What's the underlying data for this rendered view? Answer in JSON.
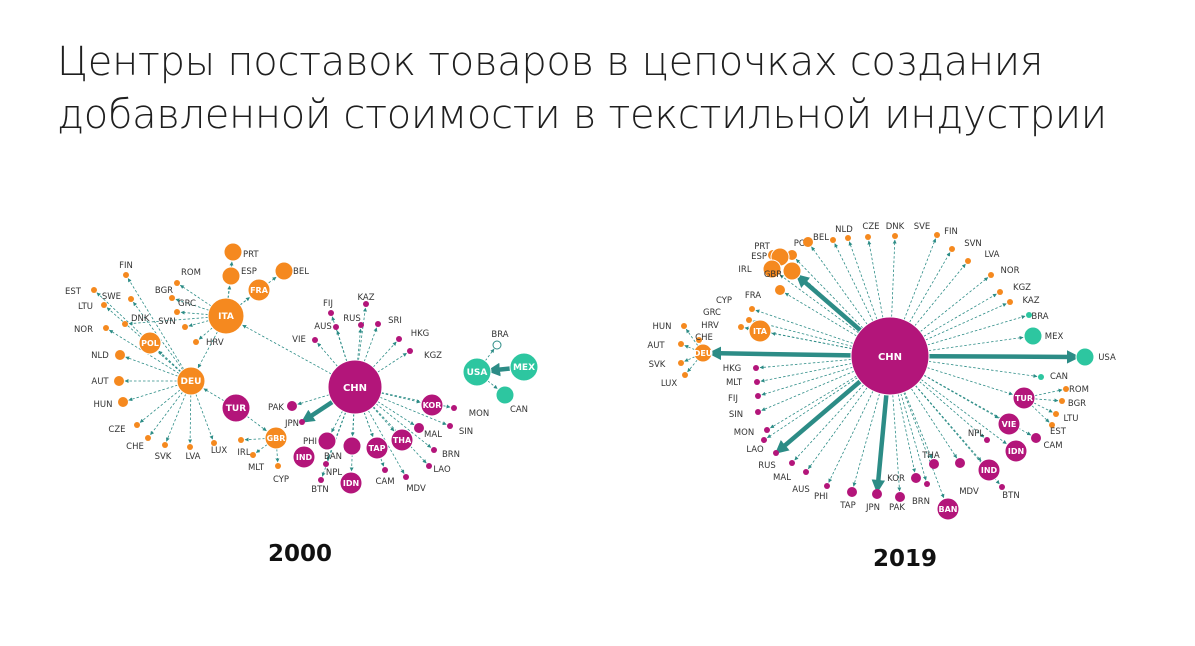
{
  "title": {
    "line1": "Центры поставок товаров в цепочках создания",
    "line2": "добавленной стоимости в текстильной индустрии"
  },
  "colors": {
    "orange": "#F5891F",
    "magenta": "#B3157A",
    "teal": "#2DC6A0",
    "edge": "#2C8C86",
    "label": "#333333"
  },
  "networks": [
    {
      "year": "2000",
      "nodes": [
        {
          "id": "CHN",
          "group": "magenta",
          "size": "xl",
          "inside": true
        },
        {
          "id": "DEU",
          "group": "orange",
          "size": "m",
          "inside": true
        },
        {
          "id": "ITA",
          "group": "orange",
          "size": "l",
          "inside": true
        },
        {
          "id": "FRA",
          "group": "orange",
          "size": "s",
          "inside": true
        },
        {
          "id": "POL",
          "group": "orange",
          "size": "s",
          "inside": true
        },
        {
          "id": "GBR",
          "group": "orange",
          "size": "s",
          "inside": true
        },
        {
          "id": "TUR",
          "group": "magenta",
          "size": "m",
          "inside": true
        },
        {
          "id": "KOR",
          "group": "magenta",
          "size": "s",
          "inside": true
        },
        {
          "id": "THA",
          "group": "magenta",
          "size": "s",
          "inside": true
        },
        {
          "id": "TAP",
          "group": "magenta",
          "size": "s",
          "inside": true
        },
        {
          "id": "IDN",
          "group": "magenta",
          "size": "s",
          "inside": true
        },
        {
          "id": "IND",
          "group": "magenta",
          "size": "s",
          "inside": true
        },
        {
          "id": "USA",
          "group": "teal",
          "size": "m",
          "inside": true
        },
        {
          "id": "MEX",
          "group": "teal",
          "size": "m",
          "inside": true
        },
        {
          "id": "PRT",
          "group": "orange",
          "size": "xs"
        },
        {
          "id": "ESP",
          "group": "orange",
          "size": "xs"
        },
        {
          "id": "BEL",
          "group": "orange",
          "size": "xs"
        },
        {
          "id": "FIN",
          "group": "orange",
          "size": "dot"
        },
        {
          "id": "EST",
          "group": "orange",
          "size": "dot"
        },
        {
          "id": "ROM",
          "group": "orange",
          "size": "dot"
        },
        {
          "id": "BGR",
          "group": "orange",
          "size": "dot"
        },
        {
          "id": "SWE",
          "group": "orange",
          "size": "dot"
        },
        {
          "id": "LTU",
          "group": "orange",
          "size": "dot"
        },
        {
          "id": "GRC",
          "group": "orange",
          "size": "dot"
        },
        {
          "id": "DNK",
          "group": "orange",
          "size": "dot"
        },
        {
          "id": "SVN",
          "group": "orange",
          "size": "dot"
        },
        {
          "id": "NOR",
          "group": "orange",
          "size": "dot"
        },
        {
          "id": "HRV",
          "group": "orange",
          "size": "dot"
        },
        {
          "id": "NLD",
          "group": "orange",
          "size": "xxs"
        },
        {
          "id": "AUT",
          "group": "orange",
          "size": "xxs"
        },
        {
          "id": "HUN",
          "group": "orange",
          "size": "xxs"
        },
        {
          "id": "CZE",
          "group": "orange",
          "size": "dot"
        },
        {
          "id": "CHE",
          "group": "orange",
          "size": "dot"
        },
        {
          "id": "SVK",
          "group": "orange",
          "size": "dot"
        },
        {
          "id": "LVA",
          "group": "orange",
          "size": "dot"
        },
        {
          "id": "LUX",
          "group": "orange",
          "size": "dot"
        },
        {
          "id": "IRL",
          "group": "orange",
          "size": "dot"
        },
        {
          "id": "MLT",
          "group": "orange",
          "size": "dot"
        },
        {
          "id": "CYP",
          "group": "orange",
          "size": "dot"
        },
        {
          "id": "PAK",
          "group": "magenta",
          "size": "xxs"
        },
        {
          "id": "JPN",
          "group": "magenta",
          "size": "dot"
        },
        {
          "id": "PHI",
          "group": "magenta",
          "size": "xs"
        },
        {
          "id": "BAN",
          "group": "magenta",
          "size": "xs"
        },
        {
          "id": "NPL",
          "group": "magenta",
          "size": "dot"
        },
        {
          "id": "BTN",
          "group": "magenta",
          "size": "dot"
        },
        {
          "id": "CAM",
          "group": "magenta",
          "size": "dot"
        },
        {
          "id": "MDV",
          "group": "magenta",
          "size": "dot"
        },
        {
          "id": "LAO",
          "group": "magenta",
          "size": "dot"
        },
        {
          "id": "BRN",
          "group": "magenta",
          "size": "dot"
        },
        {
          "id": "MAL",
          "group": "magenta",
          "size": "xxs"
        },
        {
          "id": "SIN",
          "group": "magenta",
          "size": "dot"
        },
        {
          "id": "MON",
          "group": "magenta",
          "size": "dot"
        },
        {
          "id": "KGZ",
          "group": "magenta",
          "size": "dot"
        },
        {
          "id": "HKG",
          "group": "magenta",
          "size": "dot"
        },
        {
          "id": "SRI",
          "group": "magenta",
          "size": "dot"
        },
        {
          "id": "KAZ",
          "group": "magenta",
          "size": "dot"
        },
        {
          "id": "RUS",
          "group": "magenta",
          "size": "dot"
        },
        {
          "id": "FIJ",
          "group": "magenta",
          "size": "dot"
        },
        {
          "id": "AUS",
          "group": "magenta",
          "size": "dot"
        },
        {
          "id": "VIE",
          "group": "magenta",
          "size": "dot"
        },
        {
          "id": "BRA",
          "group": "teal",
          "size": "hollow"
        },
        {
          "id": "CAN",
          "group": "teal",
          "size": "xs"
        }
      ],
      "edges": [
        [
          "ITA",
          "PRT"
        ],
        [
          "ITA",
          "ESP"
        ],
        [
          "ITA",
          "BEL"
        ],
        [
          "ITA",
          "FRA"
        ],
        [
          "ITA",
          "ROM"
        ],
        [
          "ITA",
          "BGR"
        ],
        [
          "ITA",
          "GRC"
        ],
        [
          "ITA",
          "SVN"
        ],
        [
          "ITA",
          "HRV"
        ],
        [
          "ITA",
          "DNK"
        ],
        [
          "ITA",
          "DEU"
        ],
        [
          "DEU",
          "FIN"
        ],
        [
          "DEU",
          "EST"
        ],
        [
          "DEU",
          "SWE"
        ],
        [
          "DEU",
          "LTU"
        ],
        [
          "DEU",
          "NOR"
        ],
        [
          "DEU",
          "NLD"
        ],
        [
          "DEU",
          "AUT"
        ],
        [
          "DEU",
          "HUN"
        ],
        [
          "DEU",
          "CZE"
        ],
        [
          "DEU",
          "CHE"
        ],
        [
          "DEU",
          "SVK"
        ],
        [
          "DEU",
          "LVA"
        ],
        [
          "DEU",
          "LUX"
        ],
        [
          "DEU",
          "POL"
        ],
        [
          "TUR",
          "DEU"
        ],
        [
          "TUR",
          "GBR"
        ],
        [
          "GBR",
          "IRL"
        ],
        [
          "GBR",
          "MLT"
        ],
        [
          "GBR",
          "CYP"
        ],
        [
          "CHN",
          "ITA"
        ],
        [
          "CHN",
          "FIJ"
        ],
        [
          "CHN",
          "KAZ"
        ],
        [
          "CHN",
          "AUS"
        ],
        [
          "CHN",
          "RUS"
        ],
        [
          "CHN",
          "SRI"
        ],
        [
          "CHN",
          "VIE"
        ],
        [
          "CHN",
          "HKG"
        ],
        [
          "CHN",
          "KGZ"
        ],
        [
          "CHN",
          "MON"
        ],
        [
          "CHN",
          "SIN"
        ],
        [
          "CHN",
          "MAL"
        ],
        [
          "CHN",
          "BRN"
        ],
        [
          "CHN",
          "LAO"
        ],
        [
          "CHN",
          "MDV"
        ],
        [
          "CHN",
          "CAM"
        ],
        [
          "CHN",
          "BTN"
        ],
        [
          "CHN",
          "NPL"
        ],
        [
          "CHN",
          "PAK"
        ],
        [
          "CHN",
          "JPN"
        ],
        [
          "CHN",
          "KOR"
        ],
        [
          "CHN",
          "THA"
        ],
        [
          "CHN",
          "TAP"
        ],
        [
          "CHN",
          "IDN"
        ],
        [
          "CHN",
          "BAN"
        ],
        [
          "CHN",
          "PHI"
        ],
        [
          "MEX",
          "USA"
        ],
        [
          "USA",
          "BRA"
        ],
        [
          "USA",
          "CAN"
        ]
      ],
      "strong_edges": [
        [
          "CHN",
          "JPN"
        ],
        [
          "MEX",
          "USA"
        ]
      ]
    },
    {
      "year": "2019",
      "nodes": [
        {
          "id": "CHN",
          "group": "magenta",
          "size": "xxl",
          "inside": true
        },
        {
          "id": "ITA",
          "group": "orange",
          "size": "s",
          "inside": true
        },
        {
          "id": "DEU",
          "group": "orange",
          "size": "xs",
          "inside": true
        },
        {
          "id": "TUR",
          "group": "magenta",
          "size": "s",
          "inside": true
        },
        {
          "id": "VIE",
          "group": "magenta",
          "size": "s",
          "inside": true
        },
        {
          "id": "IDN",
          "group": "magenta",
          "size": "s",
          "inside": true
        },
        {
          "id": "IND",
          "group": "magenta",
          "size": "s",
          "inside": true
        },
        {
          "id": "BAN",
          "group": "magenta",
          "size": "s",
          "inside": true
        },
        {
          "id": "MEX",
          "group": "teal",
          "size": "xs"
        },
        {
          "id": "USA",
          "group": "teal",
          "size": "xs"
        },
        {
          "id": "CAN",
          "group": "teal",
          "size": "dot"
        },
        {
          "id": "BRA",
          "group": "teal",
          "size": "dot"
        },
        {
          "id": "PRT",
          "group": "orange",
          "size": "xxs"
        },
        {
          "id": "POL",
          "group": "orange",
          "size": "xxs"
        },
        {
          "id": "BEL",
          "group": "orange",
          "size": "xxs"
        },
        {
          "id": "NLD",
          "group": "orange",
          "size": "dot"
        },
        {
          "id": "CZE",
          "group": "orange",
          "size": "dot"
        },
        {
          "id": "DNK",
          "group": "orange",
          "size": "dot"
        },
        {
          "id": "SVE",
          "group": "orange",
          "size": "dot"
        },
        {
          "id": "FIN",
          "group": "orange",
          "size": "dot"
        },
        {
          "id": "SVN",
          "group": "orange",
          "size": "dot"
        },
        {
          "id": "LVA",
          "group": "orange",
          "size": "dot"
        },
        {
          "id": "NOR",
          "group": "orange",
          "size": "dot"
        },
        {
          "id": "KGZ",
          "group": "orange",
          "size": "dot"
        },
        {
          "id": "KAZ",
          "group": "orange",
          "size": "dot"
        },
        {
          "id": "ESP",
          "group": "orange",
          "size": "xs"
        },
        {
          "id": "IRL",
          "group": "orange",
          "size": "xs"
        },
        {
          "id": "GBR",
          "group": "orange",
          "size": "xs"
        },
        {
          "id": "FRA",
          "group": "orange",
          "size": "xxs"
        },
        {
          "id": "CYP",
          "group": "orange",
          "size": "dot"
        },
        {
          "id": "GRC",
          "group": "orange",
          "size": "dot"
        },
        {
          "id": "HRV",
          "group": "orange",
          "size": "dot"
        },
        {
          "id": "HUN",
          "group": "orange",
          "size": "dot"
        },
        {
          "id": "AUT",
          "group": "orange",
          "size": "dot"
        },
        {
          "id": "CHE",
          "group": "orange",
          "size": "dot"
        },
        {
          "id": "SVK",
          "group": "orange",
          "size": "dot"
        },
        {
          "id": "LUX",
          "group": "orange",
          "size": "dot"
        },
        {
          "id": "ROM",
          "group": "orange",
          "size": "dot"
        },
        {
          "id": "BGR",
          "group": "orange",
          "size": "dot"
        },
        {
          "id": "LTU",
          "group": "orange",
          "size": "dot"
        },
        {
          "id": "EST",
          "group": "orange",
          "size": "dot"
        },
        {
          "id": "CAM",
          "group": "magenta",
          "size": "xxs"
        },
        {
          "id": "NPL",
          "group": "magenta",
          "size": "dot"
        },
        {
          "id": "BTN",
          "group": "magenta",
          "size": "dot"
        },
        {
          "id": "MDV",
          "group": "magenta",
          "size": "xxs"
        },
        {
          "id": "THA",
          "group": "magenta",
          "size": "xxs"
        },
        {
          "id": "BRN",
          "group": "magenta",
          "size": "dot"
        },
        {
          "id": "KOR",
          "group": "magenta",
          "size": "xxs"
        },
        {
          "id": "PAK",
          "group": "magenta",
          "size": "xxs"
        },
        {
          "id": "JPN",
          "group": "magenta",
          "size": "xxs"
        },
        {
          "id": "TAP",
          "group": "magenta",
          "size": "xxs"
        },
        {
          "id": "PHI",
          "group": "magenta",
          "size": "dot"
        },
        {
          "id": "AUS",
          "group": "magenta",
          "size": "dot"
        },
        {
          "id": "MAL",
          "group": "magenta",
          "size": "dot"
        },
        {
          "id": "RUS",
          "group": "magenta",
          "size": "dot"
        },
        {
          "id": "LAO",
          "group": "magenta",
          "size": "dot"
        },
        {
          "id": "MON",
          "group": "magenta",
          "size": "dot"
        },
        {
          "id": "SIN",
          "group": "magenta",
          "size": "dot"
        },
        {
          "id": "FIJ",
          "group": "magenta",
          "size": "dot"
        },
        {
          "id": "MLT",
          "group": "magenta",
          "size": "dot"
        },
        {
          "id": "HKG",
          "group": "magenta",
          "size": "dot"
        }
      ],
      "edges": [
        [
          "CHN",
          "USA"
        ],
        [
          "CHN",
          "DEU"
        ],
        [
          "CHN",
          "ITA"
        ],
        [
          "CHN",
          "GBR"
        ],
        [
          "CHN",
          "ESP"
        ],
        [
          "CHN",
          "FRA"
        ],
        [
          "CHN",
          "IRL"
        ],
        [
          "CHN",
          "PRT"
        ],
        [
          "CHN",
          "POL"
        ],
        [
          "CHN",
          "BEL"
        ],
        [
          "CHN",
          "NLD"
        ],
        [
          "CHN",
          "CZE"
        ],
        [
          "CHN",
          "DNK"
        ],
        [
          "CHN",
          "SVE"
        ],
        [
          "CHN",
          "FIN"
        ],
        [
          "CHN",
          "SVN"
        ],
        [
          "CHN",
          "LVA"
        ],
        [
          "CHN",
          "NOR"
        ],
        [
          "CHN",
          "KGZ"
        ],
        [
          "CHN",
          "KAZ"
        ],
        [
          "CHN",
          "BRA"
        ],
        [
          "CHN",
          "MEX"
        ],
        [
          "CHN",
          "CAN"
        ],
        [
          "CHN",
          "HKG"
        ],
        [
          "CHN",
          "MLT"
        ],
        [
          "CHN",
          "FIJ"
        ],
        [
          "CHN",
          "SIN"
        ],
        [
          "CHN",
          "MON"
        ],
        [
          "CHN",
          "LAO"
        ],
        [
          "CHN",
          "RUS"
        ],
        [
          "CHN",
          "MAL"
        ],
        [
          "CHN",
          "AUS"
        ],
        [
          "CHN",
          "PHI"
        ],
        [
          "CHN",
          "TAP"
        ],
        [
          "CHN",
          "JPN"
        ],
        [
          "CHN",
          "PAK"
        ],
        [
          "CHN",
          "KOR"
        ],
        [
          "CHN",
          "BAN"
        ],
        [
          "CHN",
          "BRN"
        ],
        [
          "CHN",
          "THA"
        ],
        [
          "CHN",
          "MDV"
        ],
        [
          "CHN",
          "IND"
        ],
        [
          "CHN",
          "NPL"
        ],
        [
          "CHN",
          "BTN"
        ],
        [
          "CHN",
          "IDN"
        ],
        [
          "CHN",
          "VIE"
        ],
        [
          "CHN",
          "TUR"
        ],
        [
          "CHN",
          "CAM"
        ],
        [
          "CHN",
          "CYP"
        ],
        [
          "CHN",
          "GRC"
        ],
        [
          "CHN",
          "HRV"
        ],
        [
          "DEU",
          "HUN"
        ],
        [
          "DEU",
          "AUT"
        ],
        [
          "DEU",
          "SVK"
        ],
        [
          "DEU",
          "LUX"
        ],
        [
          "DEU",
          "CHE"
        ],
        [
          "TUR",
          "ROM"
        ],
        [
          "TUR",
          "BGR"
        ],
        [
          "TUR",
          "LTU"
        ],
        [
          "TUR",
          "EST"
        ]
      ],
      "strong_edges": [
        [
          "CHN",
          "USA"
        ],
        [
          "CHN",
          "DEU"
        ],
        [
          "CHN",
          "JPN"
        ],
        [
          "CHN",
          "RUS"
        ],
        [
          "CHN",
          "GBR"
        ]
      ]
    }
  ]
}
